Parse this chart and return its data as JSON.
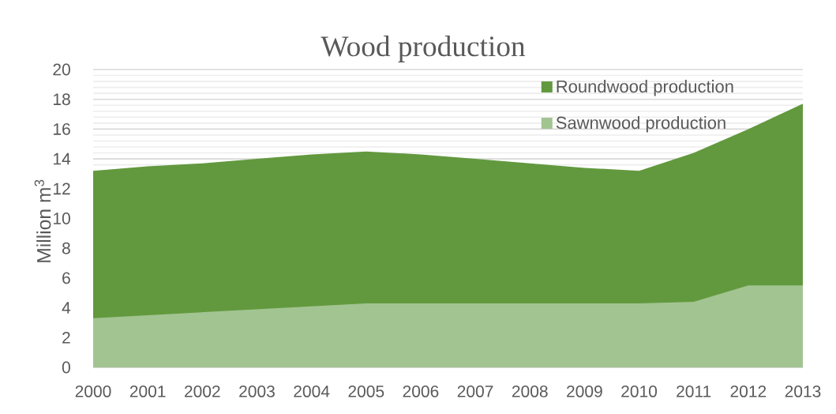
{
  "chart_data": {
    "type": "area",
    "title": "Wood production",
    "ylabel": "Million m$^{3}$",
    "categories": [
      "2000",
      "2001",
      "2002",
      "2003",
      "2004",
      "2005",
      "2006",
      "2007",
      "2008",
      "2009",
      "2010",
      "2011",
      "2012",
      "2013"
    ],
    "series": [
      {
        "name": "Roundwood production",
        "color": "#62993e",
        "values": [
          13.2,
          13.5,
          13.7,
          14.0,
          14.3,
          14.5,
          14.3,
          14.0,
          13.7,
          13.4,
          13.2,
          14.4,
          16.0,
          17.7
        ]
      },
      {
        "name": "Sawnwood production",
        "color": "#a2c491",
        "values": [
          3.3,
          3.5,
          3.7,
          3.9,
          4.1,
          4.3,
          4.3,
          4.3,
          4.3,
          4.3,
          4.3,
          4.4,
          5.5,
          5.5
        ]
      }
    ],
    "ylim": [
      0,
      20
    ],
    "yticks": [
      0,
      2,
      4,
      6,
      8,
      10,
      12,
      14,
      16,
      18,
      20
    ],
    "grid": "y",
    "legend": "top right"
  }
}
